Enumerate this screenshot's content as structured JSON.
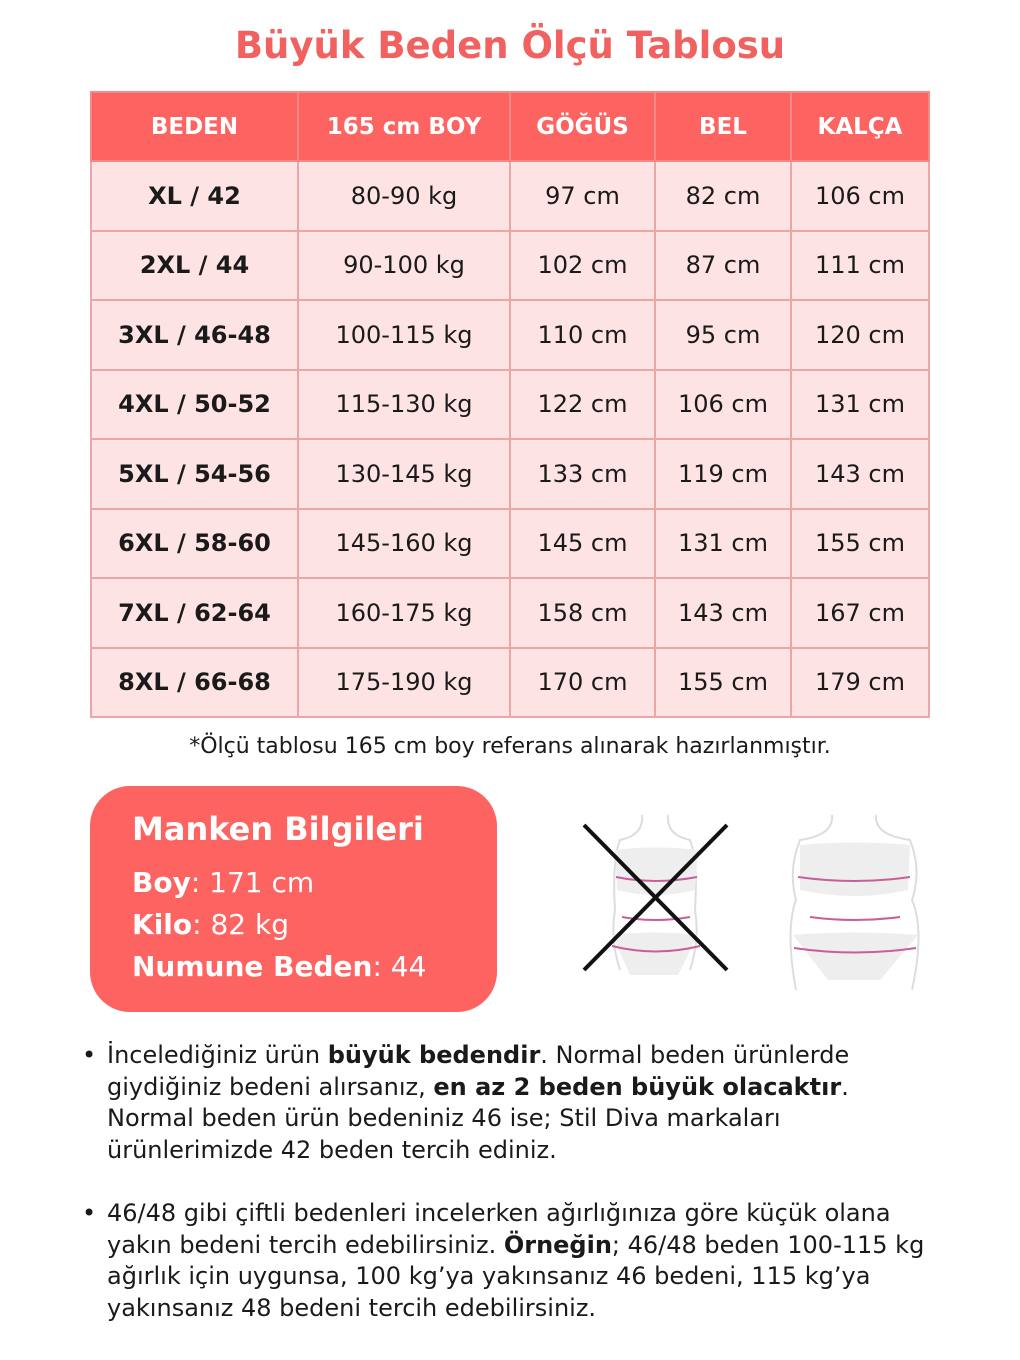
{
  "title": "Büyük Beden Ölçü Tablosu",
  "table": {
    "headers": [
      "BEDEN",
      "165 cm BOY",
      "GÖĞÜS",
      "BEL",
      "KALÇA"
    ],
    "rows": [
      [
        "XL / 42",
        "80-90 kg",
        "97 cm",
        "82 cm",
        "106 cm"
      ],
      [
        "2XL / 44",
        "90-100 kg",
        "102 cm",
        "87 cm",
        "111 cm"
      ],
      [
        "3XL / 46-48",
        "100-115 kg",
        "110 cm",
        "95 cm",
        "120 cm"
      ],
      [
        "4XL / 50-52",
        "115-130 kg",
        "122 cm",
        "106 cm",
        "131 cm"
      ],
      [
        "5XL / 54-56",
        "130-145 kg",
        "133 cm",
        "119 cm",
        "143 cm"
      ],
      [
        "6XL / 58-60",
        "145-160 kg",
        "145 cm",
        "131 cm",
        "155 cm"
      ],
      [
        "7XL / 62-64",
        "160-175 kg",
        "158 cm",
        "143 cm",
        "167 cm"
      ],
      [
        "8XL / 66-68",
        "175-190 kg",
        "170 cm",
        "155 cm",
        "179 cm"
      ]
    ]
  },
  "note": "*Ölçü tablosu 165 cm boy referans alınarak hazırlanmıştır.",
  "manken": {
    "title": "Manken Bilgileri",
    "boy_label": "Boy",
    "boy_value": ": 171 cm",
    "kilo_label": "Kilo",
    "kilo_value": ": 82 kg",
    "numune_label": "Numune Beden",
    "numune_value": ": 44"
  },
  "bullets": [
    {
      "parts": [
        "İncelediğiniz ürün ",
        "büyük bedendir",
        ". Normal beden ürünlerde giydiğiniz bedeni alırsanız, ",
        "en az 2 beden büyük olacaktır",
        ". Normal beden ürün bedeniniz 46 ise; Stil Diva markaları ürünlerimizde 42 beden tercih ediniz."
      ]
    },
    {
      "parts": [
        "46/48 gibi çiftli bedenleri incelerken ağırlığınıza göre küçük olana yakın bedeni tercih edebilirsiniz. ",
        "Örneğin",
        "; 46/48 beden 100-115 kg ağırlık için uygunsa, 100 kg’ya yakınsanız 46 bedeni, 115 kg’ya yakınsanız 48 bedeni tercih edebilirsiniz."
      ]
    }
  ],
  "colors": {
    "accent": "#fd6461",
    "title": "#f0615f",
    "cell": "#fde3e3"
  }
}
